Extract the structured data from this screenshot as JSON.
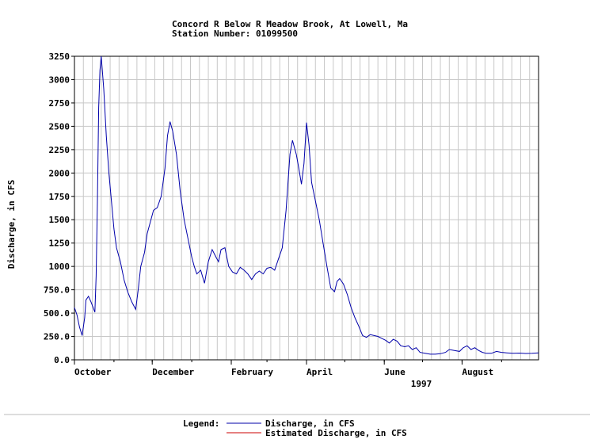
{
  "chart_data": {
    "type": "line",
    "title": "Concord R Below R Meadow Brook, At Lowell, Ma",
    "subtitle": "Station Number: 01099500",
    "ylabel": "Discharge, in CFS",
    "xlabel": "",
    "ylim": [
      0,
      3250
    ],
    "xlim": [
      "1996-10-01",
      "1997-09-30"
    ],
    "grid": true,
    "y_ticks": [
      "0.0",
      "250.0",
      "500.0",
      "750.0",
      "1000",
      "1250",
      "1500",
      "1750",
      "2000",
      "2250",
      "2500",
      "2750",
      "3000",
      "3250"
    ],
    "x_ticks": [
      {
        "date": "1996-10-01",
        "label": "October"
      },
      {
        "date": "1996-12-01",
        "label": "December"
      },
      {
        "date": "1997-02-01",
        "label": "February"
      },
      {
        "date": "1997-04-01",
        "label": "April"
      },
      {
        "date": "1997-06-01",
        "label": "June"
      },
      {
        "date": "1997-08-01",
        "label": "August"
      }
    ],
    "year_label": "1997",
    "legend_title": "Legend:",
    "legend_position": "bottom",
    "series": [
      {
        "name": "Discharge, in CFS",
        "color": "#0000aa",
        "points": [
          [
            "1996-10-01",
            560
          ],
          [
            "1996-10-03",
            480
          ],
          [
            "1996-10-05",
            350
          ],
          [
            "1996-10-07",
            260
          ],
          [
            "1996-10-09",
            450
          ],
          [
            "1996-10-10",
            640
          ],
          [
            "1996-10-12",
            680
          ],
          [
            "1996-10-14",
            620
          ],
          [
            "1996-10-17",
            510
          ],
          [
            "1996-10-18",
            900
          ],
          [
            "1996-10-19",
            1700
          ],
          [
            "1996-10-20",
            2700
          ],
          [
            "1996-10-21",
            3100
          ],
          [
            "1996-10-22",
            3250
          ],
          [
            "1996-10-24",
            2900
          ],
          [
            "1996-10-26",
            2400
          ],
          [
            "1996-10-28",
            2000
          ],
          [
            "1996-10-30",
            1700
          ],
          [
            "1996-11-01",
            1400
          ],
          [
            "1996-11-03",
            1200
          ],
          [
            "1996-11-06",
            1050
          ],
          [
            "1996-11-09",
            850
          ],
          [
            "1996-11-12",
            720
          ],
          [
            "1996-11-15",
            620
          ],
          [
            "1996-11-18",
            540
          ],
          [
            "1996-11-20",
            750
          ],
          [
            "1996-11-22",
            1000
          ],
          [
            "1996-11-25",
            1150
          ],
          [
            "1996-11-27",
            1350
          ],
          [
            "1996-11-29",
            1450
          ],
          [
            "1996-12-02",
            1600
          ],
          [
            "1996-12-05",
            1630
          ],
          [
            "1996-12-08",
            1750
          ],
          [
            "1996-12-11",
            2050
          ],
          [
            "1996-12-13",
            2400
          ],
          [
            "1996-12-15",
            2550
          ],
          [
            "1996-12-17",
            2450
          ],
          [
            "1996-12-20",
            2200
          ],
          [
            "1996-12-23",
            1800
          ],
          [
            "1996-12-26",
            1500
          ],
          [
            "1996-12-29",
            1300
          ],
          [
            "1997-01-01",
            1100
          ],
          [
            "1997-01-03",
            1000
          ],
          [
            "1997-01-05",
            920
          ],
          [
            "1997-01-08",
            960
          ],
          [
            "1997-01-11",
            820
          ],
          [
            "1997-01-14",
            1050
          ],
          [
            "1997-01-17",
            1180
          ],
          [
            "1997-01-20",
            1100
          ],
          [
            "1997-01-22",
            1050
          ],
          [
            "1997-01-24",
            1180
          ],
          [
            "1997-01-27",
            1200
          ],
          [
            "1997-01-30",
            1000
          ],
          [
            "1997-02-02",
            940
          ],
          [
            "1997-02-05",
            920
          ],
          [
            "1997-02-08",
            990
          ],
          [
            "1997-02-11",
            960
          ],
          [
            "1997-02-14",
            920
          ],
          [
            "1997-02-17",
            860
          ],
          [
            "1997-02-20",
            920
          ],
          [
            "1997-02-23",
            950
          ],
          [
            "1997-02-26",
            920
          ],
          [
            "1997-03-01",
            980
          ],
          [
            "1997-03-04",
            990
          ],
          [
            "1997-03-07",
            960
          ],
          [
            "1997-03-10",
            1080
          ],
          [
            "1997-03-13",
            1200
          ],
          [
            "1997-03-16",
            1600
          ],
          [
            "1997-03-19",
            2200
          ],
          [
            "1997-03-21",
            2350
          ],
          [
            "1997-03-24",
            2200
          ],
          [
            "1997-03-26",
            2050
          ],
          [
            "1997-03-28",
            1880
          ],
          [
            "1997-03-30",
            2100
          ],
          [
            "1997-04-01",
            2540
          ],
          [
            "1997-04-03",
            2300
          ],
          [
            "1997-04-05",
            1900
          ],
          [
            "1997-04-08",
            1700
          ],
          [
            "1997-04-11",
            1500
          ],
          [
            "1997-04-14",
            1250
          ],
          [
            "1997-04-17",
            1000
          ],
          [
            "1997-04-20",
            770
          ],
          [
            "1997-04-23",
            730
          ],
          [
            "1997-04-25",
            840
          ],
          [
            "1997-04-27",
            870
          ],
          [
            "1997-04-30",
            810
          ],
          [
            "1997-05-03",
            700
          ],
          [
            "1997-05-06",
            560
          ],
          [
            "1997-05-09",
            450
          ],
          [
            "1997-05-12",
            360
          ],
          [
            "1997-05-15",
            260
          ],
          [
            "1997-05-18",
            240
          ],
          [
            "1997-05-21",
            270
          ],
          [
            "1997-05-24",
            260
          ],
          [
            "1997-05-27",
            250
          ],
          [
            "1997-05-30",
            230
          ],
          [
            "1997-06-02",
            210
          ],
          [
            "1997-06-05",
            180
          ],
          [
            "1997-06-08",
            220
          ],
          [
            "1997-06-11",
            200
          ],
          [
            "1997-06-14",
            150
          ],
          [
            "1997-06-17",
            140
          ],
          [
            "1997-06-20",
            150
          ],
          [
            "1997-06-23",
            110
          ],
          [
            "1997-06-26",
            130
          ],
          [
            "1997-06-29",
            80
          ],
          [
            "1997-07-03",
            70
          ],
          [
            "1997-07-07",
            60
          ],
          [
            "1997-07-11",
            60
          ],
          [
            "1997-07-15",
            65
          ],
          [
            "1997-07-19",
            80
          ],
          [
            "1997-07-22",
            110
          ],
          [
            "1997-07-26",
            100
          ],
          [
            "1997-07-30",
            90
          ],
          [
            "1997-08-02",
            130
          ],
          [
            "1997-08-05",
            150
          ],
          [
            "1997-08-08",
            110
          ],
          [
            "1997-08-11",
            130
          ],
          [
            "1997-08-14",
            100
          ],
          [
            "1997-08-17",
            80
          ],
          [
            "1997-08-20",
            70
          ],
          [
            "1997-08-24",
            70
          ],
          [
            "1997-08-28",
            90
          ],
          [
            "1997-09-01",
            80
          ],
          [
            "1997-09-05",
            75
          ],
          [
            "1997-09-10",
            70
          ],
          [
            "1997-09-15",
            72
          ],
          [
            "1997-09-20",
            68
          ],
          [
            "1997-09-25",
            70
          ],
          [
            "1997-09-30",
            75
          ]
        ]
      },
      {
        "name": "Estimated Discharge, in CFS",
        "color": "#cc0000",
        "points": []
      }
    ]
  }
}
